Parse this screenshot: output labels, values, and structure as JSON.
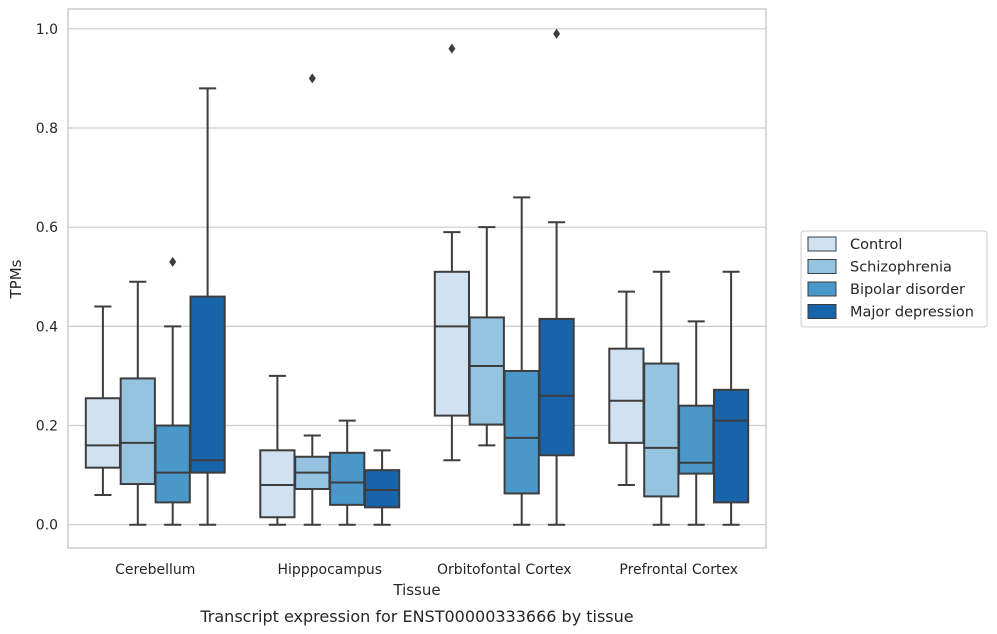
{
  "chart_data": {
    "type": "box",
    "title": "",
    "caption": "Transcript expression for ENST00000333666 by tissue",
    "xlabel": "Tissue",
    "ylabel": "TPMs",
    "ylim": [
      -0.047,
      1.04
    ],
    "yticks": [
      "0.0",
      "0.2",
      "0.4",
      "0.6",
      "0.8",
      "1.0"
    ],
    "grid": "horizontal",
    "legend_position": "right",
    "categories": [
      "Cerebellum",
      "Hipppocampus",
      "Orbitofontal Cortex",
      "Prefrontal Cortex"
    ],
    "series": [
      {
        "name": "Control",
        "color": "#d0e1f2",
        "boxes": [
          {
            "whislo": 0.06,
            "q1": 0.115,
            "med": 0.16,
            "q3": 0.255,
            "whishi": 0.44,
            "fliers": []
          },
          {
            "whislo": 0.0,
            "q1": 0.015,
            "med": 0.08,
            "q3": 0.15,
            "whishi": 0.3,
            "fliers": []
          },
          {
            "whislo": 0.13,
            "q1": 0.22,
            "med": 0.4,
            "q3": 0.51,
            "whishi": 0.59,
            "fliers": [
              0.96
            ]
          },
          {
            "whislo": 0.08,
            "q1": 0.165,
            "med": 0.25,
            "q3": 0.355,
            "whishi": 0.47,
            "fliers": []
          }
        ]
      },
      {
        "name": "Schizophrenia",
        "color": "#94c4df",
        "boxes": [
          {
            "whislo": 0.0,
            "q1": 0.082,
            "med": 0.165,
            "q3": 0.295,
            "whishi": 0.49,
            "fliers": []
          },
          {
            "whislo": 0.0,
            "q1": 0.072,
            "med": 0.105,
            "q3": 0.137,
            "whishi": 0.18,
            "fliers": [
              0.9
            ]
          },
          {
            "whislo": 0.16,
            "q1": 0.202,
            "med": 0.32,
            "q3": 0.418,
            "whishi": 0.6,
            "fliers": []
          },
          {
            "whislo": 0.0,
            "q1": 0.057,
            "med": 0.155,
            "q3": 0.325,
            "whishi": 0.51,
            "fliers": []
          }
        ]
      },
      {
        "name": "Bipolar disorder",
        "color": "#4a98c9",
        "boxes": [
          {
            "whislo": 0.0,
            "q1": 0.045,
            "med": 0.105,
            "q3": 0.2,
            "whishi": 0.4,
            "fliers": [
              0.53
            ]
          },
          {
            "whislo": 0.0,
            "q1": 0.04,
            "med": 0.085,
            "q3": 0.145,
            "whishi": 0.21,
            "fliers": []
          },
          {
            "whislo": 0.0,
            "q1": 0.063,
            "med": 0.175,
            "q3": 0.31,
            "whishi": 0.66,
            "fliers": []
          },
          {
            "whislo": 0.0,
            "q1": 0.103,
            "med": 0.125,
            "q3": 0.24,
            "whishi": 0.41,
            "fliers": []
          }
        ]
      },
      {
        "name": "Major depression",
        "color": "#1764ab",
        "boxes": [
          {
            "whislo": 0.0,
            "q1": 0.105,
            "med": 0.13,
            "q3": 0.46,
            "whishi": 0.88,
            "fliers": []
          },
          {
            "whislo": 0.0,
            "q1": 0.035,
            "med": 0.07,
            "q3": 0.11,
            "whishi": 0.15,
            "fliers": []
          },
          {
            "whislo": 0.0,
            "q1": 0.14,
            "med": 0.26,
            "q3": 0.415,
            "whishi": 0.61,
            "fliers": [
              0.99
            ]
          },
          {
            "whislo": 0.0,
            "q1": 0.045,
            "med": 0.21,
            "q3": 0.272,
            "whishi": 0.51,
            "fliers": []
          }
        ]
      }
    ]
  }
}
